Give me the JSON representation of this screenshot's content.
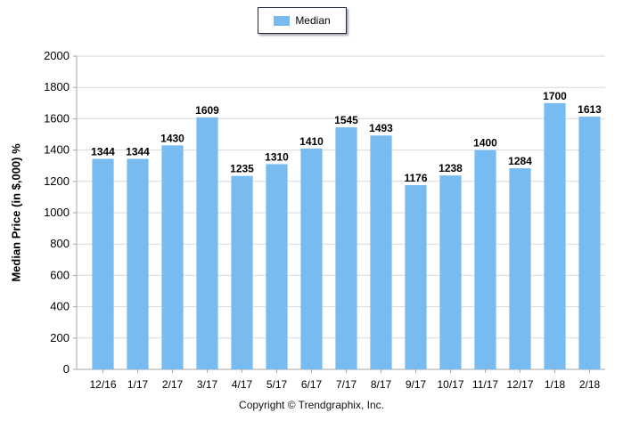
{
  "legend": {
    "label": "Median"
  },
  "copyright": "Copyright © Trendgraphix, Inc.",
  "colors": {
    "bar": "#77bbf1",
    "grid": "#d9d9d9",
    "axis": "#a6a6a6"
  },
  "chart_data": {
    "type": "bar",
    "title": "",
    "xlabel": "",
    "ylabel": "Median Price (in $,000) %",
    "ylim": [
      0,
      2000
    ],
    "yticks": [
      0,
      200,
      400,
      600,
      800,
      1000,
      1200,
      1400,
      1600,
      1800,
      2000
    ],
    "grid": true,
    "legend_position": "top-center",
    "categories": [
      "12/16",
      "1/17",
      "2/17",
      "3/17",
      "4/17",
      "5/17",
      "6/17",
      "7/17",
      "8/17",
      "9/17",
      "10/17",
      "11/17",
      "12/17",
      "1/18",
      "2/18"
    ],
    "series": [
      {
        "name": "Median",
        "values": [
          1344,
          1344,
          1430,
          1609,
          1235,
          1310,
          1410,
          1545,
          1493,
          1176,
          1238,
          1400,
          1284,
          1700,
          1613
        ]
      }
    ]
  }
}
